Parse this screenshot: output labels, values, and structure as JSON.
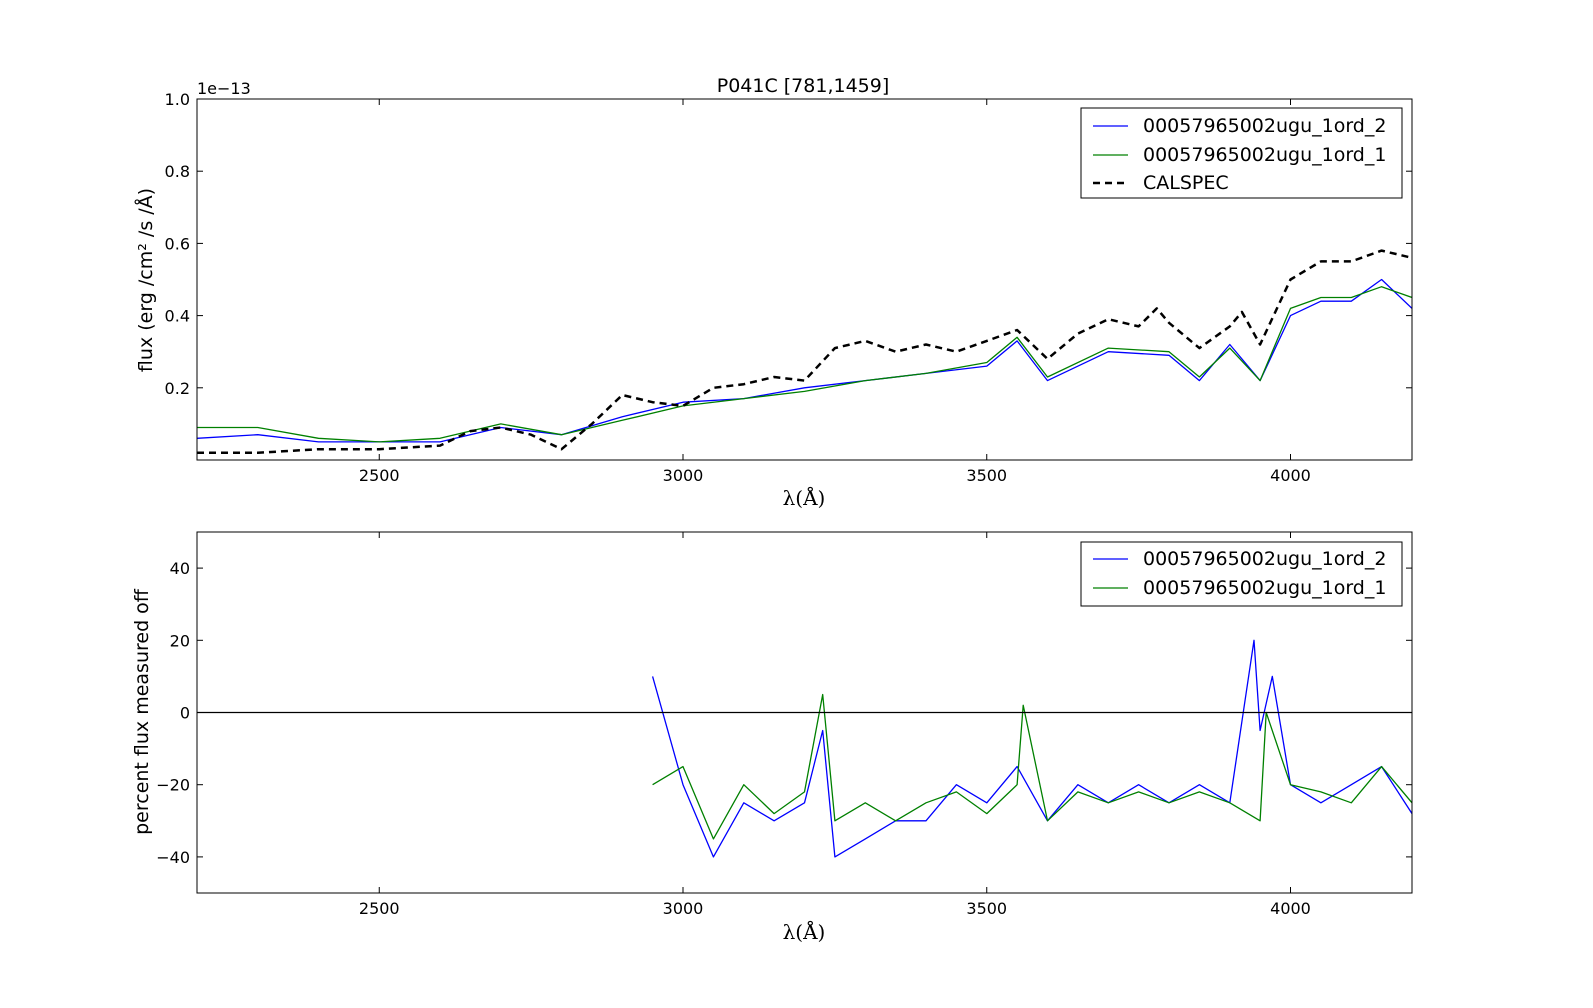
{
  "chart_data": [
    {
      "type": "line",
      "title": "P041C [781,1459]",
      "xlabel": "λ(Å)",
      "ylabel": "flux (erg /cm² /s /Å)",
      "y_offset_text": "1e−13",
      "xlim": [
        2200,
        4200
      ],
      "ylim": [
        0.0,
        1.0
      ],
      "x_ticks": [
        2500,
        3000,
        3500,
        4000
      ],
      "y_ticks": [
        0.2,
        0.4,
        0.6,
        0.8,
        1.0
      ],
      "x_tick_labels": [
        "2500",
        "3000",
        "3500",
        "4000"
      ],
      "y_tick_labels": [
        "0.2",
        "0.4",
        "0.6",
        "0.8",
        "1.0"
      ],
      "legend": {
        "position": "top-right"
      },
      "series": [
        {
          "name": "00057965002ugu_1ord_2",
          "color": "#0000ff",
          "style": "solid",
          "x": [
            2200,
            2300,
            2400,
            2500,
            2600,
            2700,
            2800,
            2900,
            3000,
            3100,
            3200,
            3300,
            3400,
            3500,
            3550,
            3600,
            3700,
            3800,
            3850,
            3900,
            3950,
            4000,
            4050,
            4100,
            4150,
            4200
          ],
          "y": [
            0.06,
            0.07,
            0.05,
            0.05,
            0.05,
            0.09,
            0.07,
            0.12,
            0.16,
            0.17,
            0.2,
            0.22,
            0.24,
            0.26,
            0.33,
            0.22,
            0.3,
            0.29,
            0.22,
            0.32,
            0.22,
            0.4,
            0.44,
            0.44,
            0.5,
            0.42
          ]
        },
        {
          "name": "00057965002ugu_1ord_1",
          "color": "#008000",
          "style": "solid",
          "x": [
            2200,
            2300,
            2400,
            2500,
            2600,
            2700,
            2800,
            2900,
            3000,
            3100,
            3200,
            3300,
            3400,
            3500,
            3550,
            3600,
            3700,
            3800,
            3850,
            3900,
            3950,
            4000,
            4050,
            4100,
            4150,
            4200
          ],
          "y": [
            0.09,
            0.09,
            0.06,
            0.05,
            0.06,
            0.1,
            0.07,
            0.11,
            0.15,
            0.17,
            0.19,
            0.22,
            0.24,
            0.27,
            0.34,
            0.23,
            0.31,
            0.3,
            0.23,
            0.31,
            0.22,
            0.42,
            0.45,
            0.45,
            0.48,
            0.45
          ]
        },
        {
          "name": "CALSPEC",
          "color": "#000000",
          "style": "dashed",
          "x": [
            2200,
            2300,
            2400,
            2500,
            2600,
            2650,
            2700,
            2750,
            2800,
            2850,
            2900,
            2950,
            3000,
            3050,
            3100,
            3150,
            3200,
            3250,
            3300,
            3350,
            3400,
            3450,
            3500,
            3550,
            3600,
            3650,
            3700,
            3750,
            3780,
            3800,
            3850,
            3900,
            3920,
            3950,
            4000,
            4050,
            4100,
            4150,
            4200
          ],
          "y": [
            0.02,
            0.02,
            0.03,
            0.03,
            0.04,
            0.08,
            0.09,
            0.07,
            0.03,
            0.1,
            0.18,
            0.16,
            0.15,
            0.2,
            0.21,
            0.23,
            0.22,
            0.31,
            0.33,
            0.3,
            0.32,
            0.3,
            0.33,
            0.36,
            0.28,
            0.35,
            0.39,
            0.37,
            0.42,
            0.38,
            0.31,
            0.37,
            0.41,
            0.32,
            0.5,
            0.55,
            0.55,
            0.58,
            0.56
          ]
        }
      ]
    },
    {
      "type": "line",
      "title": "",
      "xlabel": "λ(Å)",
      "ylabel": "percent flux measured off",
      "xlim": [
        2200,
        4200
      ],
      "ylim": [
        -50,
        50
      ],
      "x_ticks": [
        2500,
        3000,
        3500,
        4000
      ],
      "y_ticks": [
        -40,
        -20,
        0,
        20,
        40
      ],
      "x_tick_labels": [
        "2500",
        "3000",
        "3500",
        "4000"
      ],
      "y_tick_labels": [
        "−40",
        "−20",
        "0",
        "20",
        "40"
      ],
      "reference_line_y": 0,
      "legend": {
        "position": "top-right"
      },
      "series": [
        {
          "name": "00057965002ugu_1ord_2",
          "color": "#0000ff",
          "style": "solid",
          "x": [
            2950,
            3000,
            3050,
            3100,
            3150,
            3200,
            3230,
            3250,
            3300,
            3350,
            3400,
            3450,
            3500,
            3550,
            3600,
            3650,
            3700,
            3750,
            3800,
            3850,
            3900,
            3940,
            3950,
            3970,
            4000,
            4050,
            4100,
            4150,
            4200
          ],
          "y": [
            10,
            -20,
            -40,
            -25,
            -30,
            -25,
            -5,
            -40,
            -35,
            -30,
            -30,
            -20,
            -25,
            -15,
            -30,
            -20,
            -25,
            -20,
            -25,
            -20,
            -25,
            20,
            -5,
            10,
            -20,
            -25,
            -20,
            -15,
            -28
          ]
        },
        {
          "name": "00057965002ugu_1ord_1",
          "color": "#008000",
          "style": "solid",
          "x": [
            2950,
            3000,
            3050,
            3100,
            3150,
            3200,
            3230,
            3250,
            3300,
            3350,
            3400,
            3450,
            3500,
            3550,
            3560,
            3600,
            3650,
            3700,
            3750,
            3800,
            3850,
            3900,
            3950,
            3960,
            4000,
            4050,
            4100,
            4150,
            4200
          ],
          "y": [
            -20,
            -15,
            -35,
            -20,
            -28,
            -22,
            5,
            -30,
            -25,
            -30,
            -25,
            -22,
            -28,
            -20,
            2,
            -30,
            -22,
            -25,
            -22,
            -25,
            -22,
            -25,
            -30,
            0,
            -20,
            -22,
            -25,
            -15,
            -25
          ]
        }
      ]
    }
  ],
  "legend_style": {
    "edge_color": "#000000",
    "frame": true
  }
}
